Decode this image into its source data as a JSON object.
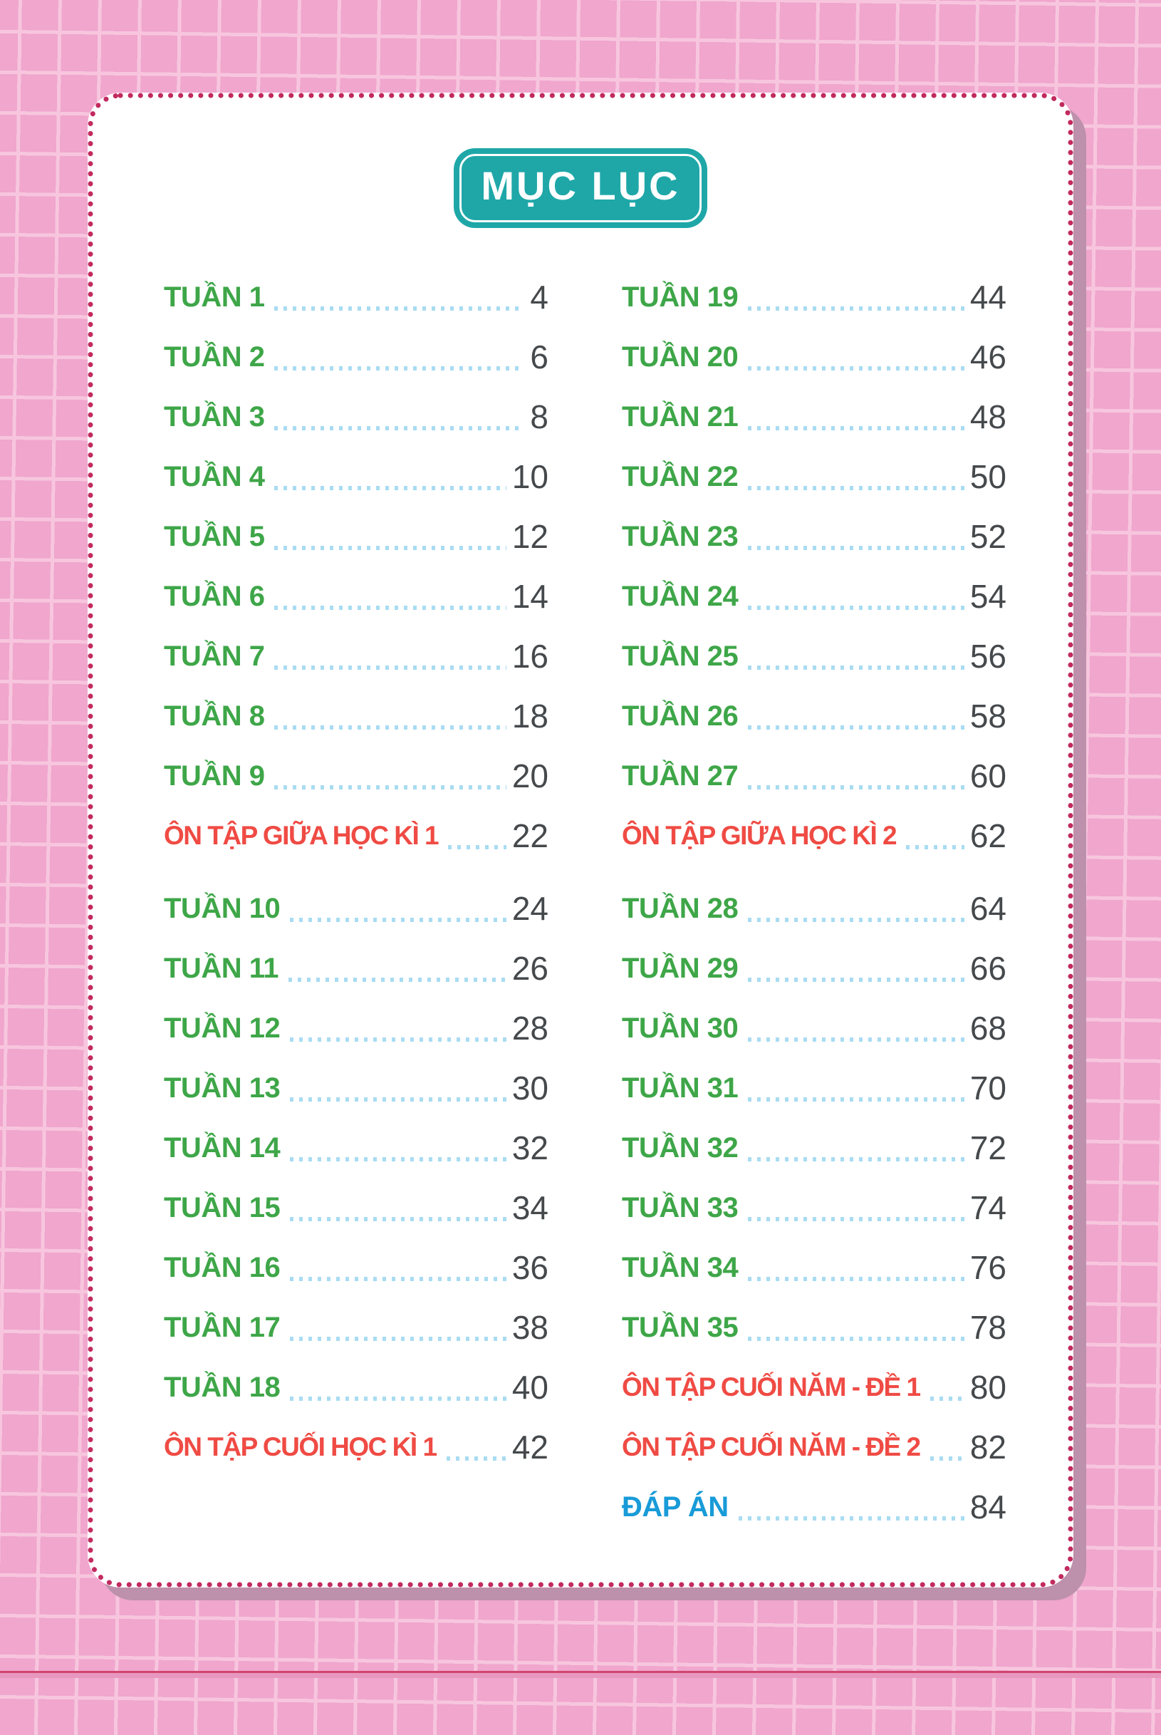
{
  "title": "MỤC LỤC",
  "columns": {
    "left": [
      {
        "label": "TUẦN 1",
        "page": "4",
        "type": "week"
      },
      {
        "label": "TUẦN 2",
        "page": "6",
        "type": "week"
      },
      {
        "label": "TUẦN 3",
        "page": "8",
        "type": "week"
      },
      {
        "label": "TUẦN 4",
        "page": "10",
        "type": "week"
      },
      {
        "label": "TUẦN 5",
        "page": "12",
        "type": "week"
      },
      {
        "label": "TUẦN 6",
        "page": "14",
        "type": "week"
      },
      {
        "label": "TUẦN 7",
        "page": "16",
        "type": "week"
      },
      {
        "label": "TUẦN 8",
        "page": "18",
        "type": "week"
      },
      {
        "label": "TUẦN 9",
        "page": "20",
        "type": "week"
      },
      {
        "label": "ÔN TẬP GIỮA HỌC KÌ 1",
        "page": "22",
        "type": "review"
      },
      {
        "label": "TUẦN 10",
        "page": "24",
        "type": "week",
        "gap_before": true
      },
      {
        "label": "TUẦN 11",
        "page": "26",
        "type": "week"
      },
      {
        "label": "TUẦN 12",
        "page": "28",
        "type": "week"
      },
      {
        "label": "TUẦN 13",
        "page": "30",
        "type": "week"
      },
      {
        "label": "TUẦN 14",
        "page": "32",
        "type": "week"
      },
      {
        "label": "TUẦN 15",
        "page": "34",
        "type": "week"
      },
      {
        "label": "TUẦN 16",
        "page": "36",
        "type": "week"
      },
      {
        "label": "TUẦN 17",
        "page": "38",
        "type": "week"
      },
      {
        "label": "TUẦN 18",
        "page": "40",
        "type": "week"
      },
      {
        "label": "ÔN TẬP CUỐI HỌC KÌ 1",
        "page": "42",
        "type": "review"
      }
    ],
    "right": [
      {
        "label": "TUẦN 19",
        "page": "44",
        "type": "week"
      },
      {
        "label": "TUẦN 20",
        "page": "46",
        "type": "week"
      },
      {
        "label": "TUẦN 21",
        "page": "48",
        "type": "week"
      },
      {
        "label": "TUẦN 22",
        "page": "50",
        "type": "week"
      },
      {
        "label": "TUẦN 23",
        "page": "52",
        "type": "week"
      },
      {
        "label": "TUẦN 24",
        "page": "54",
        "type": "week"
      },
      {
        "label": "TUẦN 25",
        "page": "56",
        "type": "week"
      },
      {
        "label": "TUẦN 26",
        "page": "58",
        "type": "week"
      },
      {
        "label": "TUẦN 27",
        "page": "60",
        "type": "week"
      },
      {
        "label": "ÔN TẬP GIỮA HỌC KÌ 2",
        "page": "62",
        "type": "review"
      },
      {
        "label": "TUẦN 28",
        "page": "64",
        "type": "week",
        "gap_before": true
      },
      {
        "label": "TUẦN 29",
        "page": "66",
        "type": "week"
      },
      {
        "label": "TUẦN 30",
        "page": "68",
        "type": "week"
      },
      {
        "label": "TUẦN 31",
        "page": "70",
        "type": "week"
      },
      {
        "label": "TUẦN 32",
        "page": "72",
        "type": "week"
      },
      {
        "label": "TUẦN 33",
        "page": "74",
        "type": "week"
      },
      {
        "label": "TUẦN 34",
        "page": "76",
        "type": "week"
      },
      {
        "label": "TUẦN 35",
        "page": "78",
        "type": "week"
      },
      {
        "label": "ÔN TẬP CUỐI NĂM - ĐỀ 1",
        "page": "80",
        "type": "review"
      },
      {
        "label": "ÔN TẬP CUỐI NĂM - ĐỀ 2",
        "page": "82",
        "type": "review"
      },
      {
        "label": "ĐÁP ÁN",
        "page": "84",
        "type": "answers"
      }
    ]
  },
  "colors": {
    "background": "#F0A6CD",
    "grid_line": "#F7C6DE",
    "badge": "#1FA7A8",
    "week": "#3EA648",
    "review": "#EF4B44",
    "answers": "#189BD8",
    "page_number": "#45494C",
    "leader_dots": "#A9DCF2",
    "border_dots": "#C22A5F"
  }
}
